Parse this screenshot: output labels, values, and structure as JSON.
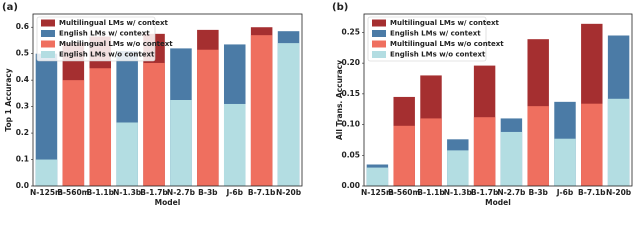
{
  "chart_data": [
    {
      "type": "bar",
      "label": "(a)",
      "ylabel": "Top 1 Accuracy",
      "xlabel": "Model",
      "categories": [
        "N-125m",
        "B-560m",
        "B-1.1b",
        "N-1.3b",
        "B-1.7b",
        "N-2.7b",
        "B-3b",
        "J-6b",
        "B-7.1b",
        "N-20b"
      ],
      "series": [
        {
          "name": "Multilingual LMs w/ context",
          "color": "#a52f30",
          "values": [
            null,
            0.54,
            0.565,
            null,
            0.575,
            null,
            0.59,
            null,
            0.6,
            null
          ]
        },
        {
          "name": "English LMs w/ context",
          "color": "#4b7ba6",
          "values": [
            0.5,
            null,
            null,
            0.51,
            null,
            0.52,
            null,
            0.535,
            null,
            0.585
          ]
        },
        {
          "name": "Multilingual LMs w/o context",
          "color": "#ef6f5f",
          "values": [
            null,
            0.4,
            0.445,
            null,
            0.465,
            null,
            0.515,
            null,
            0.57,
            null
          ]
        },
        {
          "name": "English LMs w/o context",
          "color": "#b3dde2",
          "values": [
            0.1,
            null,
            null,
            0.24,
            null,
            0.325,
            null,
            0.31,
            null,
            0.54
          ]
        }
      ],
      "ylim": [
        0,
        0.65
      ],
      "yticks": [
        {
          "value": 0,
          "label": "0.0"
        },
        0.1,
        0.2,
        0.3,
        0.4,
        0.5,
        0.6
      ],
      "legend": "upper left"
    },
    {
      "type": "bar",
      "label": "(b)",
      "ylabel": "All Trans. Accuracy",
      "xlabel": "Model",
      "categories": [
        "N-125m",
        "B-560m",
        "B-1.1b",
        "N-1.3b",
        "B-1.7b",
        "N-2.7b",
        "B-3b",
        "J-6b",
        "B-7.1b",
        "N-20b"
      ],
      "series": [
        {
          "name": "Multilingual LMs w/ context",
          "color": "#a52f30",
          "values": [
            null,
            0.145,
            0.18,
            null,
            0.196,
            null,
            0.239,
            null,
            0.264,
            null
          ]
        },
        {
          "name": "English LMs w/ context",
          "color": "#4b7ba6",
          "values": [
            0.035,
            null,
            null,
            0.076,
            null,
            0.11,
            null,
            0.137,
            null,
            0.245
          ]
        },
        {
          "name": "Multilingual LMs w/o context",
          "color": "#ef6f5f",
          "values": [
            null,
            0.098,
            0.11,
            null,
            0.112,
            null,
            0.13,
            null,
            0.134,
            null
          ]
        },
        {
          "name": "English LMs w/o context",
          "color": "#b3dde2",
          "values": [
            0.03,
            null,
            null,
            0.058,
            null,
            0.088,
            null,
            0.077,
            null,
            0.142
          ]
        }
      ],
      "ylim": [
        0,
        0.28
      ],
      "yticks": [
        {
          "value": 0,
          "label": "0.00"
        },
        0.05,
        {
          "value": 0.1,
          "label": "0.10"
        },
        0.15,
        {
          "value": 0.2,
          "label": "0.20"
        },
        0.25
      ],
      "legend": "upper left"
    }
  ]
}
